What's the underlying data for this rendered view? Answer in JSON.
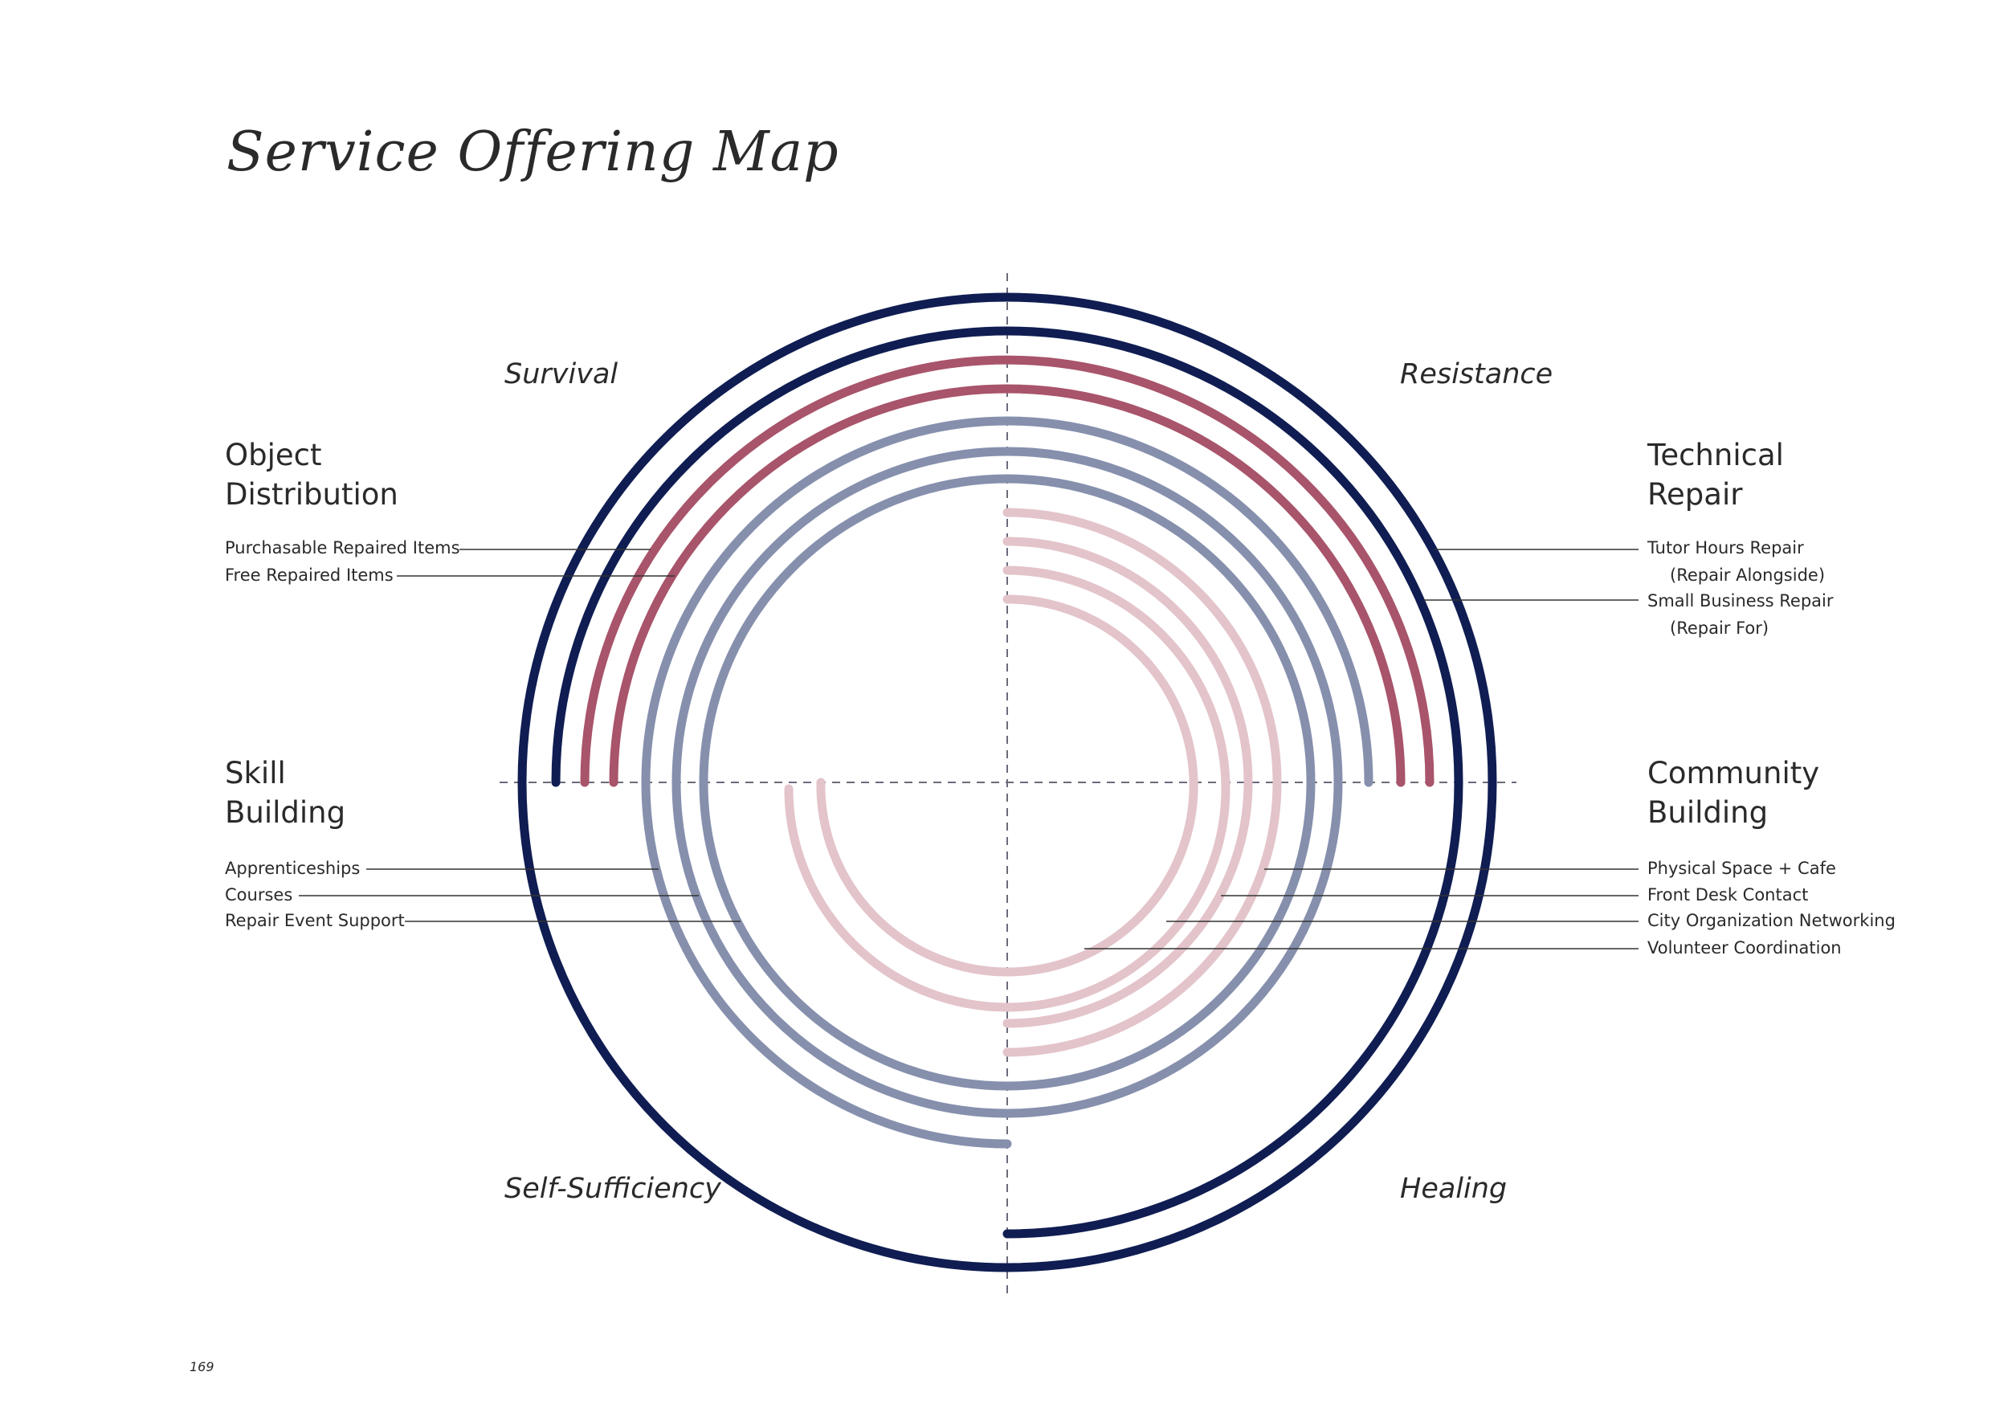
{
  "title": "Service Offering Map",
  "page_number": "169",
  "quadrants": {
    "top_left": "Survival",
    "top_right": "Resistance",
    "bottom_left": "Self-Sufficiency",
    "bottom_right": "Healing"
  },
  "categories": {
    "object_distribution": {
      "line1": "Object",
      "line2": "Distribution",
      "items": [
        "Purchasable Repaired Items",
        "Free Repaired Items"
      ]
    },
    "technical_repair": {
      "line1": "Technical",
      "line2": "Repair",
      "items": [
        {
          "main": "Tutor Hours Repair",
          "sub": "(Repair Alongside)"
        },
        {
          "main": "Small Business Repair",
          "sub": "(Repair For)"
        }
      ]
    },
    "skill_building": {
      "line1": "Skill",
      "line2": "Building",
      "items": [
        "Apprenticeships",
        "Courses",
        "Repair Event Support"
      ]
    },
    "community_building": {
      "line1": "Community",
      "line2": "Building",
      "items": [
        "Physical Space + Cafe",
        "Front Desk Contact",
        "City Organization Networking",
        "Volunteer Coordination"
      ]
    }
  },
  "colors": {
    "navy": "#0f1d52",
    "crimson": "#a8546a",
    "slate": "#8690ad",
    "rose": "#e3c4ca",
    "axis": "#6b6b7a",
    "leader": "#333333",
    "text": "#2a2a2a"
  }
}
